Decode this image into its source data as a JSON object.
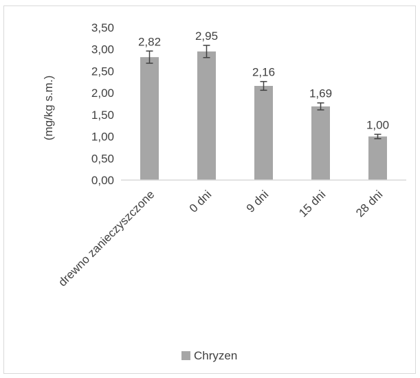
{
  "chart_data": {
    "type": "bar",
    "categories": [
      "drewno zanieczyszczone",
      "0 dni",
      "9 dni",
      "15 dni",
      "28 dni"
    ],
    "series": [
      {
        "name": "Chryzen",
        "values": [
          2.82,
          2.95,
          2.16,
          1.69,
          1.0
        ],
        "data_labels": [
          "2,82",
          "2,95",
          "2,16",
          "1,69",
          "1,00"
        ],
        "error": [
          0.14,
          0.14,
          0.1,
          0.08,
          0.05
        ],
        "color": "#a6a6a6"
      }
    ],
    "ylabel": "(mg/kg s.m.)",
    "ylim": [
      0,
      3.5
    ],
    "yticks": [
      0,
      0.5,
      1.0,
      1.5,
      2.0,
      2.5,
      3.0,
      3.5
    ],
    "ytick_labels": [
      "0,00",
      "0,50",
      "1,00",
      "1,50",
      "2,00",
      "2,50",
      "3,00",
      "3,50"
    ],
    "grid": false,
    "legend": "bottom",
    "error_bar_color": "#404040",
    "axis_color": "#d9d9d9"
  }
}
